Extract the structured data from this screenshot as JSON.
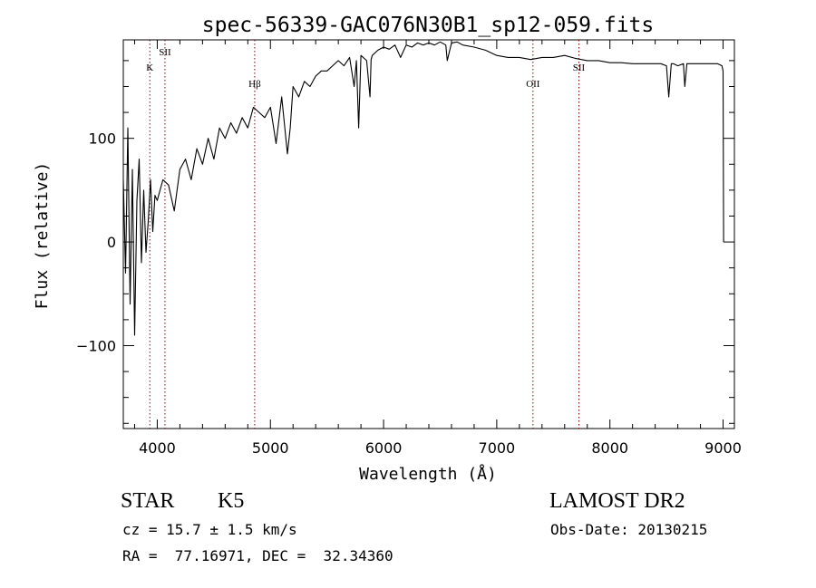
{
  "chart_data": {
    "type": "line",
    "title": "spec-56339-GAC076N30B1_sp12-059.fits",
    "xlabel": "Wavelength (Å)",
    "ylabel": "Flux (relative)",
    "xlim": [
      3700,
      9100
    ],
    "ylim": [
      -180,
      195
    ],
    "xticks": [
      4000,
      5000,
      6000,
      7000,
      8000,
      9000
    ],
    "yticks": [
      -100,
      0,
      100
    ],
    "grid": false,
    "legend": "none",
    "line_color": "#000000",
    "marker_color": "#8b0000",
    "series": [
      {
        "x": [
          3700,
          3720,
          3740,
          3760,
          3780,
          3800,
          3820,
          3840,
          3860,
          3880,
          3900,
          3920,
          3940,
          3960,
          3980,
          4000,
          4050,
          4100,
          4150,
          4200,
          4250,
          4300,
          4350,
          4400,
          4450,
          4500,
          4550,
          4600,
          4650,
          4700,
          4750,
          4800,
          4850,
          4900,
          4950,
          5000,
          5050,
          5100,
          5150,
          5175,
          5200,
          5250,
          5300,
          5350,
          5400,
          5450,
          5500,
          5550,
          5600,
          5650,
          5700,
          5740,
          5760,
          5780,
          5800,
          5850,
          5880,
          5890,
          5900,
          5950,
          6000,
          6050,
          6100,
          6150,
          6200,
          6250,
          6300,
          6350,
          6400,
          6450,
          6500,
          6550,
          6563,
          6600,
          6650,
          6700,
          6800,
          6900,
          7000,
          7100,
          7200,
          7300,
          7400,
          7500,
          7600,
          7700,
          7800,
          7900,
          8000,
          8100,
          8200,
          8300,
          8400,
          8450,
          8500,
          8520,
          8542,
          8560,
          8600,
          8650,
          8662,
          8680,
          8700,
          8750,
          8800,
          8850,
          8900,
          8950,
          8990,
          9000,
          9005
        ],
        "y": [
          60,
          -30,
          110,
          -60,
          70,
          -90,
          40,
          80,
          -20,
          50,
          -10,
          20,
          60,
          10,
          45,
          40,
          60,
          55,
          30,
          70,
          80,
          60,
          90,
          75,
          100,
          80,
          110,
          100,
          115,
          105,
          120,
          110,
          130,
          125,
          120,
          130,
          95,
          140,
          85,
          110,
          150,
          140,
          155,
          150,
          160,
          165,
          165,
          170,
          175,
          170,
          178,
          150,
          175,
          110,
          180,
          175,
          140,
          176,
          180,
          185,
          188,
          186,
          190,
          178,
          190,
          188,
          192,
          190,
          192,
          190,
          193,
          190,
          175,
          192,
          193,
          190,
          188,
          185,
          180,
          178,
          178,
          176,
          178,
          178,
          180,
          177,
          175,
          175,
          173,
          173,
          172,
          172,
          172,
          172,
          170,
          140,
          172,
          172,
          170,
          172,
          150,
          172,
          172,
          172,
          172,
          172,
          172,
          172,
          170,
          165,
          0
        ]
      }
    ],
    "line_markers": [
      {
        "label": "K",
        "x": 3934
      },
      {
        "label": "SII",
        "x": 4068
      },
      {
        "label": "Hβ",
        "x": 4861
      },
      {
        "label": "OII",
        "x": 7320
      },
      {
        "label": "SII",
        "x": 7726
      }
    ]
  },
  "info": {
    "object_class": "STAR",
    "subclass": "K5",
    "survey": "LAMOST DR2",
    "redshift": "cz = 15.7 ± 1.5 km/s",
    "obs_date": "Obs-Date: 20130215",
    "coords": "RA =  77.16971, DEC =  32.34360"
  }
}
